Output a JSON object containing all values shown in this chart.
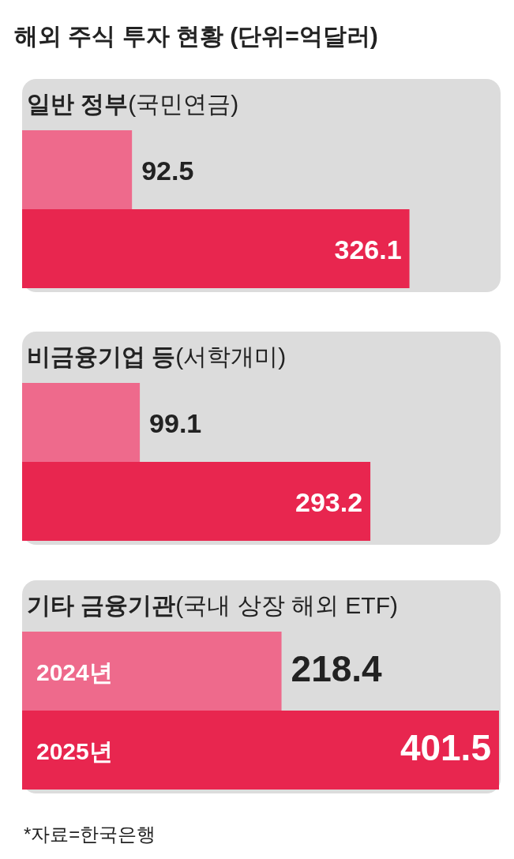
{
  "chart_data": [
    {
      "type": "other",
      "title": "해외 주식 투자 현황 (단위=억달러)"
    },
    {
      "type": "bar",
      "orientation": "horizontal",
      "title": "일반 정부(국민연금)",
      "categories": [
        null
      ],
      "data_labels": true,
      "series": [
        {
          "color": "#ee6a8c",
          "values": [
            92.5
          ]
        },
        {
          "color": "#e8264f",
          "values": [
            326.1
          ]
        }
      ]
    },
    {
      "type": "bar",
      "orientation": "horizontal",
      "title": "비금융기업 등(서학개미)",
      "categories": [
        null
      ],
      "data_labels": true,
      "series": [
        {
          "color": "#ee6a8c",
          "values": [
            99.1
          ]
        },
        {
          "color": "#e8264f",
          "values": [
            293.2
          ]
        }
      ]
    },
    {
      "type": "bar",
      "orientation": "horizontal",
      "title": "기타 금융기관(국내 상장 해외 ETF)",
      "categories": [
        null
      ],
      "data_labels": true,
      "annotations": [
        "*자료=한국은행"
      ],
      "series": [
        {
          "name": "2024년",
          "color": "#ee6a8c",
          "values": [
            218.4
          ]
        },
        {
          "name": "2025년",
          "color": "#e8264f",
          "values": [
            401.5
          ]
        }
      ]
    }
  ]
}
